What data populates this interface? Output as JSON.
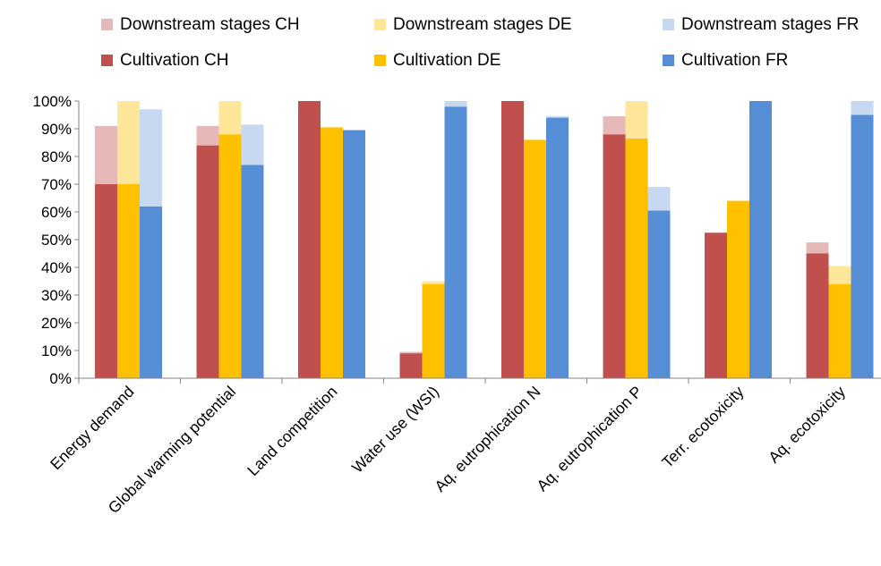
{
  "chart_data": {
    "type": "bar",
    "stacked": true,
    "categories": [
      "Energy demand",
      "Global warming potential",
      "Land competition",
      "Water use (WSI)",
      "Aq. eutrophication N",
      "Aq. eutrophication P",
      "Terr. ecotoxicity",
      "Aq. ecotoxicity"
    ],
    "groups": [
      {
        "country": "CH",
        "cultivation": {
          "name": "Cultivation CH",
          "color": "#c0504d",
          "values": [
            70,
            84,
            100,
            9,
            100,
            88,
            52.5,
            45
          ]
        },
        "downstream": {
          "name": "Downstream stages CH",
          "color": "#e6b9b8",
          "values": [
            21,
            7,
            0,
            0.5,
            0,
            6.5,
            0,
            4
          ]
        }
      },
      {
        "country": "DE",
        "cultivation": {
          "name": "Cultivation DE",
          "color": "#ffc000",
          "values": [
            70,
            88,
            90.5,
            34,
            86,
            86.5,
            64,
            34
          ]
        },
        "downstream": {
          "name": "Downstream stages DE",
          "color": "#ffe699",
          "values": [
            30,
            12,
            0,
            1,
            0,
            13.5,
            0,
            6.5
          ]
        }
      },
      {
        "country": "FR",
        "cultivation": {
          "name": "Cultivation FR",
          "color": "#558ed5",
          "values": [
            62,
            77,
            89.5,
            98,
            94,
            60.5,
            100,
            95
          ]
        },
        "downstream": {
          "name": "Downstream stages FR",
          "color": "#c6d9f1",
          "values": [
            35,
            14.5,
            0,
            2,
            0.5,
            8.5,
            0,
            5
          ]
        }
      }
    ],
    "legend": {
      "placement": "top",
      "row1": [
        "Downstream stages CH",
        "Downstream stages DE",
        "Downstream stages FR"
      ],
      "row2": [
        "Cultivation CH",
        "Cultivation DE",
        "Cultivation FR"
      ]
    },
    "y_ticks": [
      "0%",
      "10%",
      "20%",
      "30%",
      "40%",
      "50%",
      "60%",
      "70%",
      "80%",
      "90%",
      "100%"
    ],
    "ylim": [
      0,
      100
    ],
    "grid": false
  }
}
